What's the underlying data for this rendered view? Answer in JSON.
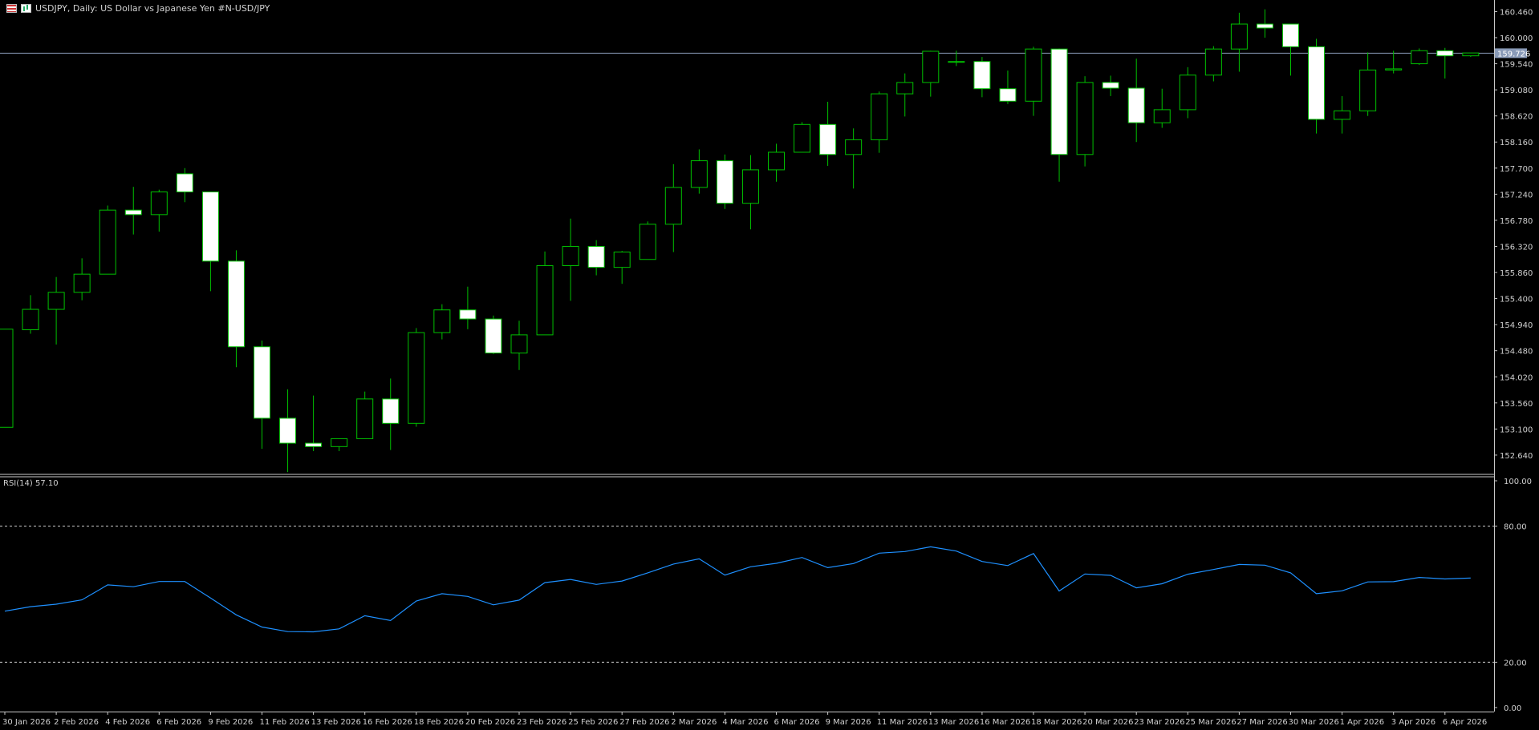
{
  "header": {
    "title": "USDJPY, Daily:  US Dollar vs  Japanese Yen #N-USD/JPY"
  },
  "colors": {
    "background": "#000000",
    "candle_border": "#00c000",
    "bull_body": "#000000",
    "bear_body": "#ffffff",
    "grid_frame": "#c8c8c8",
    "rsi_line": "#1e90ff",
    "current_price_line": "#8a9bb8"
  },
  "price_panel": {
    "y_ticks": [
      "160.460",
      "160.000",
      "159.540",
      "159.080",
      "158.620",
      "158.160",
      "157.700",
      "157.240",
      "156.780",
      "156.320",
      "155.860",
      "155.400",
      "154.940",
      "154.480",
      "154.020",
      "153.560",
      "153.100",
      "152.640"
    ],
    "current_price_label": "159.726"
  },
  "rsi_panel": {
    "label": "RSI(14) 57.10",
    "y_ticks": [
      "100.00",
      "80.00",
      "20.00",
      "0.00"
    ]
  },
  "x_labels": [
    "30 Jan 2026",
    "2 Feb 2026",
    "4 Feb 2026",
    "6 Feb 2026",
    "9 Feb 2026",
    "11 Feb 2026",
    "13 Feb 2026",
    "16 Feb 2026",
    "18 Feb 2026",
    "20 Feb 2026",
    "23 Feb 2026",
    "25 Feb 2026",
    "27 Feb 2026",
    "2 Mar 2026",
    "4 Mar 2026",
    "6 Mar 2026",
    "9 Mar 2026",
    "11 Mar 2026",
    "13 Mar 2026",
    "16 Mar 2026",
    "18 Mar 2026",
    "20 Mar 2026",
    "23 Mar 2026",
    "25 Mar 2026",
    "27 Mar 2026",
    "30 Mar 2026",
    "1 Apr 2026",
    "3 Apr 2026",
    "6 Apr 2026"
  ],
  "chart_data": [
    {
      "type": "candlestick",
      "symbol": "USDJPY",
      "timeframe": "Daily",
      "ylim": [
        152.3,
        160.65
      ],
      "current_price": 159.726,
      "candles": [
        {
          "o": 153.13,
          "h": 154.86,
          "l": 153.13,
          "c": 154.86
        },
        {
          "o": 154.85,
          "h": 155.46,
          "l": 154.78,
          "c": 155.21
        },
        {
          "o": 155.21,
          "h": 155.78,
          "l": 154.59,
          "c": 155.51
        },
        {
          "o": 155.51,
          "h": 156.11,
          "l": 155.37,
          "c": 155.83
        },
        {
          "o": 155.83,
          "h": 157.04,
          "l": 155.83,
          "c": 156.96
        },
        {
          "o": 156.96,
          "h": 157.37,
          "l": 156.53,
          "c": 156.88
        },
        {
          "o": 156.88,
          "h": 157.32,
          "l": 156.58,
          "c": 157.28
        },
        {
          "o": 157.6,
          "h": 157.7,
          "l": 157.1,
          "c": 157.28
        },
        {
          "o": 157.28,
          "h": 157.28,
          "l": 155.53,
          "c": 156.06
        },
        {
          "o": 156.06,
          "h": 156.25,
          "l": 154.19,
          "c": 154.55
        },
        {
          "o": 154.55,
          "h": 154.66,
          "l": 152.75,
          "c": 153.29
        },
        {
          "o": 153.29,
          "h": 153.8,
          "l": 152.34,
          "c": 152.85
        },
        {
          "o": 152.85,
          "h": 153.69,
          "l": 152.71,
          "c": 152.79
        },
        {
          "o": 152.79,
          "h": 152.93,
          "l": 152.71,
          "c": 152.93
        },
        {
          "o": 152.93,
          "h": 153.76,
          "l": 152.93,
          "c": 153.63
        },
        {
          "o": 153.63,
          "h": 153.99,
          "l": 152.73,
          "c": 153.2
        },
        {
          "o": 153.2,
          "h": 154.88,
          "l": 153.14,
          "c": 154.8
        },
        {
          "o": 154.8,
          "h": 155.3,
          "l": 154.68,
          "c": 155.2
        },
        {
          "o": 155.2,
          "h": 155.61,
          "l": 154.86,
          "c": 155.04
        },
        {
          "o": 155.04,
          "h": 155.1,
          "l": 154.42,
          "c": 154.44
        },
        {
          "o": 154.44,
          "h": 155.01,
          "l": 154.14,
          "c": 154.76
        },
        {
          "o": 154.76,
          "h": 156.23,
          "l": 154.76,
          "c": 155.98
        },
        {
          "o": 155.98,
          "h": 156.81,
          "l": 155.36,
          "c": 156.32
        },
        {
          "o": 156.32,
          "h": 156.43,
          "l": 155.81,
          "c": 155.95
        },
        {
          "o": 155.95,
          "h": 156.24,
          "l": 155.66,
          "c": 156.22
        },
        {
          "o": 156.09,
          "h": 156.76,
          "l": 156.09,
          "c": 156.71
        },
        {
          "o": 156.71,
          "h": 157.77,
          "l": 156.22,
          "c": 157.36
        },
        {
          "o": 157.36,
          "h": 158.03,
          "l": 157.25,
          "c": 157.83
        },
        {
          "o": 157.83,
          "h": 157.94,
          "l": 156.98,
          "c": 157.08
        },
        {
          "o": 157.08,
          "h": 157.93,
          "l": 156.62,
          "c": 157.67
        },
        {
          "o": 157.67,
          "h": 158.13,
          "l": 157.46,
          "c": 157.98
        },
        {
          "o": 157.98,
          "h": 158.51,
          "l": 157.98,
          "c": 158.47
        },
        {
          "o": 158.47,
          "h": 158.87,
          "l": 157.74,
          "c": 157.94
        },
        {
          "o": 157.94,
          "h": 158.4,
          "l": 157.34,
          "c": 158.2
        },
        {
          "o": 158.2,
          "h": 159.05,
          "l": 157.97,
          "c": 159.01
        },
        {
          "o": 159.01,
          "h": 159.37,
          "l": 158.61,
          "c": 159.21
        },
        {
          "o": 159.21,
          "h": 159.77,
          "l": 158.96,
          "c": 159.76
        },
        {
          "o": 159.57,
          "h": 159.77,
          "l": 159.5,
          "c": 159.58
        },
        {
          "o": 159.58,
          "h": 159.66,
          "l": 158.95,
          "c": 159.1
        },
        {
          "o": 159.1,
          "h": 159.42,
          "l": 158.83,
          "c": 158.88
        },
        {
          "o": 158.88,
          "h": 159.84,
          "l": 158.62,
          "c": 159.8
        },
        {
          "o": 159.8,
          "h": 159.81,
          "l": 157.46,
          "c": 157.94
        },
        {
          "o": 157.94,
          "h": 159.32,
          "l": 157.73,
          "c": 159.21
        },
        {
          "o": 159.21,
          "h": 159.33,
          "l": 158.97,
          "c": 159.11
        },
        {
          "o": 159.11,
          "h": 159.63,
          "l": 158.16,
          "c": 158.5
        },
        {
          "o": 158.5,
          "h": 159.1,
          "l": 158.41,
          "c": 158.73
        },
        {
          "o": 158.73,
          "h": 159.48,
          "l": 158.58,
          "c": 159.34
        },
        {
          "o": 159.34,
          "h": 159.85,
          "l": 159.23,
          "c": 159.8
        },
        {
          "o": 159.8,
          "h": 160.44,
          "l": 159.4,
          "c": 160.24
        },
        {
          "o": 160.24,
          "h": 160.5,
          "l": 160.0,
          "c": 160.17
        },
        {
          "o": 160.24,
          "h": 160.24,
          "l": 159.33,
          "c": 159.84
        },
        {
          "o": 159.84,
          "h": 159.98,
          "l": 158.31,
          "c": 158.56
        },
        {
          "o": 158.56,
          "h": 158.97,
          "l": 158.31,
          "c": 158.71
        },
        {
          "o": 158.71,
          "h": 159.74,
          "l": 158.62,
          "c": 159.43
        },
        {
          "o": 159.43,
          "h": 159.77,
          "l": 159.37,
          "c": 159.45
        },
        {
          "o": 159.54,
          "h": 159.81,
          "l": 159.52,
          "c": 159.77
        },
        {
          "o": 159.77,
          "h": 159.82,
          "l": 159.28,
          "c": 159.68
        },
        {
          "o": 159.68,
          "h": 159.72,
          "l": 159.66,
          "c": 159.73
        }
      ]
    },
    {
      "type": "line",
      "name": "RSI(14)",
      "ylim": [
        0,
        100
      ],
      "levels": [
        80,
        20
      ],
      "values": [
        42.5,
        44.5,
        45.6,
        47.5,
        54.1,
        53.3,
        55.6,
        55.6,
        48.3,
        40.9,
        35.5,
        33.5,
        33.4,
        34.7,
        40.5,
        38.4,
        47.0,
        50.2,
        49.0,
        45.3,
        47.4,
        55.1,
        56.5,
        54.3,
        55.8,
        59.4,
        63.3,
        65.6,
        58.4,
        62.1,
        63.6,
        66.2,
        61.7,
        63.5,
        68.1,
        68.8,
        70.9,
        69.0,
        64.4,
        62.6,
        67.9,
        51.4,
        58.9,
        58.3,
        52.8,
        54.6,
        58.8,
        60.9,
        63.1,
        62.8,
        59.4,
        50.2,
        51.5,
        55.4,
        55.5,
        57.4,
        56.7,
        57.1
      ]
    }
  ]
}
